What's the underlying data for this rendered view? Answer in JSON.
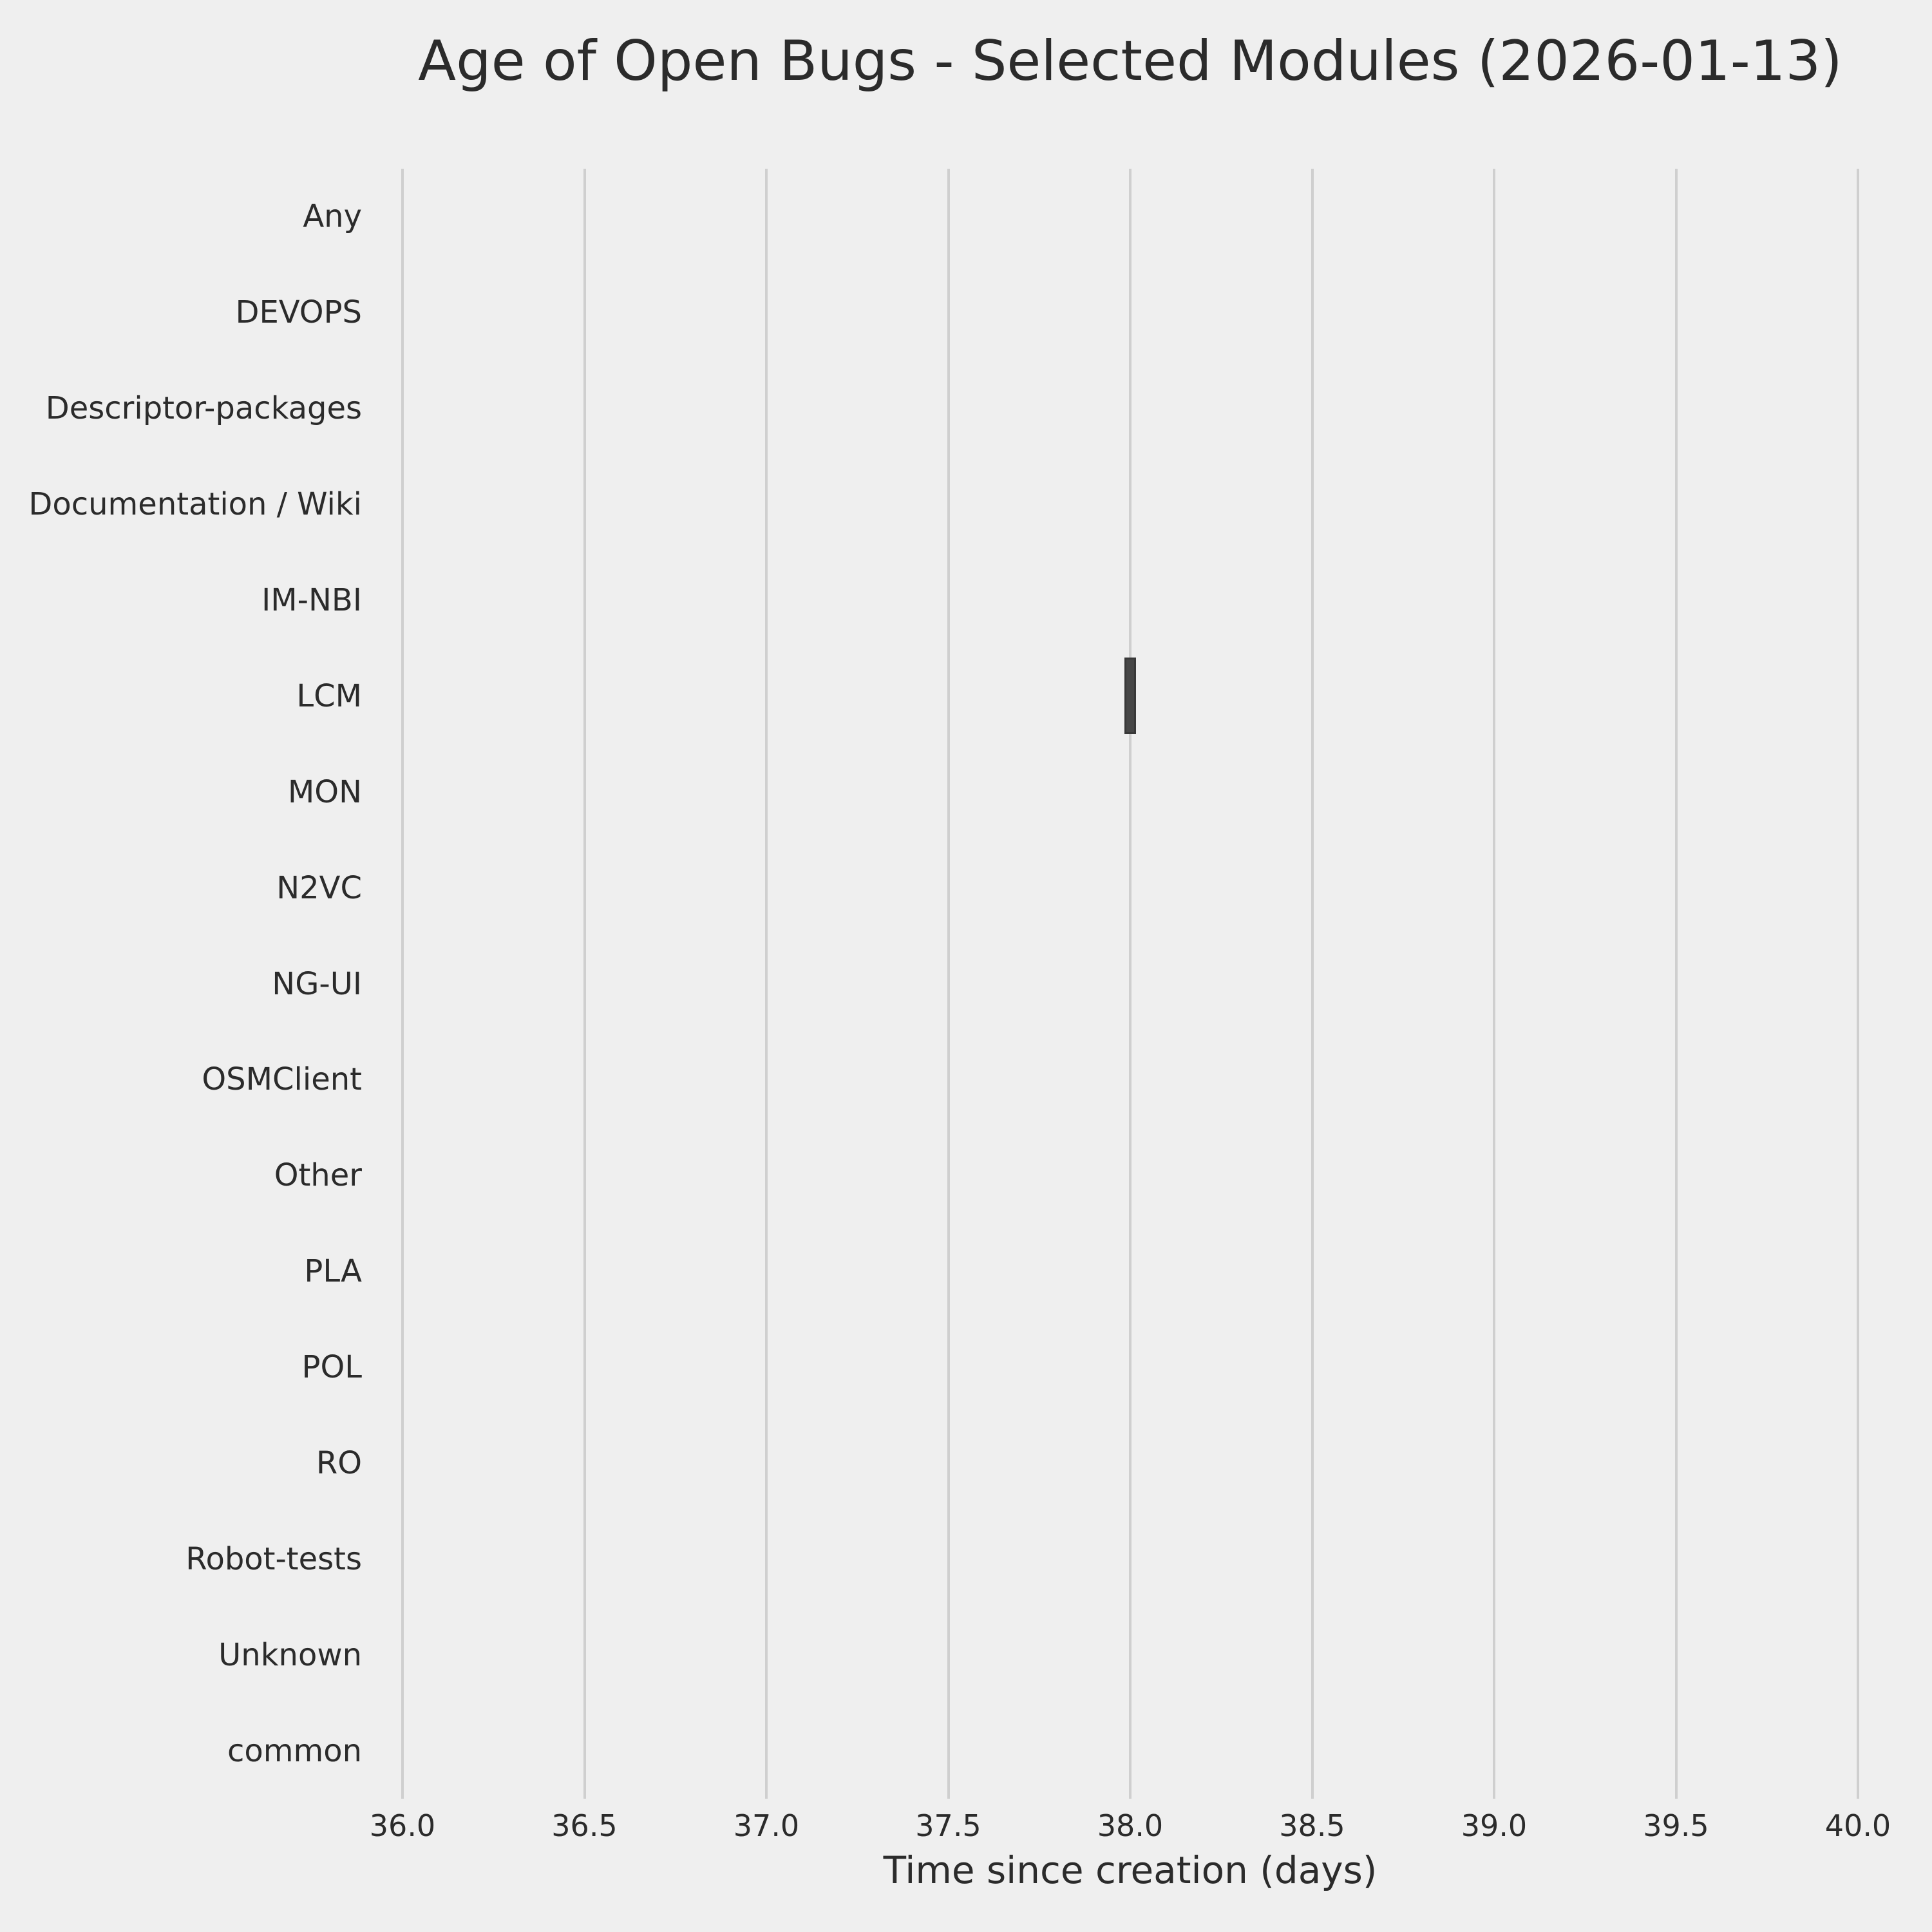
{
  "chart_data": {
    "type": "boxplot",
    "orientation": "horizontal",
    "title": "Age of Open Bugs - Selected Modules (2026-01-13)",
    "xlabel": "Time since creation (days)",
    "ylabel": "",
    "categories": [
      "Any",
      "DEVOPS",
      "Descriptor-packages",
      "Documentation / Wiki",
      "IM-NBI",
      "LCM",
      "MON",
      "N2VC",
      "NG-UI",
      "OSMClient",
      "Other",
      "PLA",
      "POL",
      "RO",
      "Robot-tests",
      "Unknown",
      "common"
    ],
    "x_ticks": [
      36.0,
      36.5,
      37.0,
      37.5,
      38.0,
      38.5,
      39.0,
      39.5,
      40.0
    ],
    "x_tick_labels": [
      "36.0",
      "36.5",
      "37.0",
      "37.5",
      "38.0",
      "38.5",
      "39.0",
      "39.5",
      "40.0"
    ],
    "xlim": [
      35.8,
      40.2
    ],
    "grid": "vertical",
    "legend": "none",
    "boxes": [
      {
        "category": "LCM",
        "whisker_low": 38.0,
        "q1": 38.0,
        "median": 38.0,
        "q3": 38.0,
        "whisker_high": 38.0
      }
    ],
    "colors": {
      "background": "#EFEFEF",
      "gridline": "#CFCFCF",
      "box_fill": "#464646",
      "box_edge": "#383838",
      "text": "#2B2B2B"
    }
  }
}
